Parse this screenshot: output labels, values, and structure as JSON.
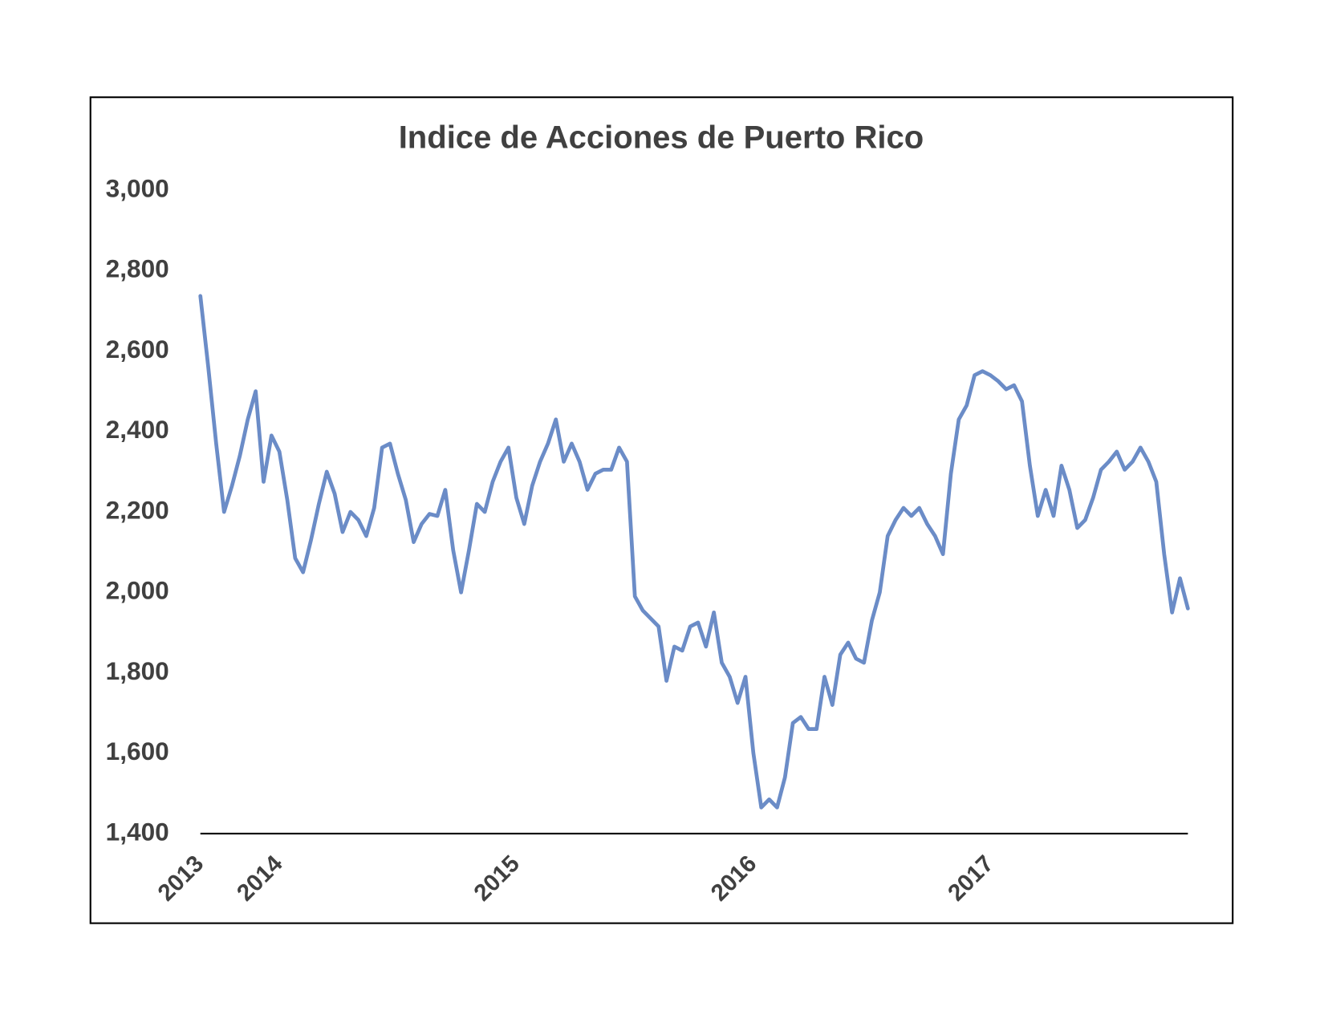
{
  "chart_data": {
    "type": "line",
    "title": "Indice de Acciones de Puerto Rico",
    "categories": [
      "2013",
      null,
      null,
      null,
      null,
      null,
      null,
      null,
      null,
      null,
      "2014",
      null,
      null,
      null,
      null,
      null,
      null,
      null,
      null,
      null,
      null,
      null,
      null,
      null,
      null,
      null,
      null,
      null,
      null,
      null,
      null,
      null,
      null,
      null,
      null,
      null,
      null,
      null,
      null,
      null,
      "2015",
      null,
      null,
      null,
      null,
      null,
      null,
      null,
      null,
      null,
      null,
      null,
      null,
      null,
      null,
      null,
      null,
      null,
      null,
      null,
      null,
      null,
      null,
      null,
      null,
      null,
      null,
      null,
      null,
      null,
      "2016",
      null,
      null,
      null,
      null,
      null,
      null,
      null,
      null,
      null,
      null,
      null,
      null,
      null,
      null,
      null,
      null,
      null,
      null,
      null,
      null,
      null,
      null,
      null,
      null,
      null,
      null,
      null,
      null,
      null,
      "2017",
      null,
      null,
      null,
      null,
      null,
      null,
      null,
      null,
      null,
      null,
      null,
      null,
      null,
      null,
      null,
      null,
      null,
      null,
      null,
      null,
      null,
      null,
      null,
      null,
      null
    ],
    "values": [
      2737,
      2560,
      2370,
      2200,
      2265,
      2340,
      2430,
      2500,
      2275,
      2390,
      2350,
      2230,
      2085,
      2050,
      2130,
      2220,
      2300,
      2245,
      2150,
      2200,
      2180,
      2140,
      2210,
      2360,
      2370,
      2295,
      2230,
      2125,
      2170,
      2195,
      2190,
      2255,
      2105,
      2000,
      2105,
      2220,
      2200,
      2275,
      2325,
      2360,
      2235,
      2170,
      2265,
      2325,
      2370,
      2430,
      2325,
      2370,
      2325,
      2255,
      2295,
      2305,
      2305,
      2360,
      2325,
      1990,
      1955,
      1935,
      1915,
      1780,
      1865,
      1855,
      1915,
      1925,
      1865,
      1950,
      1825,
      1790,
      1725,
      1790,
      1600,
      1465,
      1485,
      1465,
      1540,
      1675,
      1690,
      1660,
      1660,
      1790,
      1720,
      1845,
      1875,
      1835,
      1825,
      1930,
      2000,
      2140,
      2180,
      2210,
      2190,
      2210,
      2170,
      2140,
      2095,
      2295,
      2430,
      2465,
      2540,
      2550,
      2540,
      2525,
      2505,
      2515,
      2475,
      2315,
      2190,
      2255,
      2190,
      2315,
      2255,
      2160,
      2180,
      2235,
      2305,
      2325,
      2350,
      2305,
      2325,
      2360,
      2325,
      2275,
      2095,
      1950,
      2035,
      1960
    ],
    "color": "#6b8cc7",
    "ylim": [
      1400,
      3000
    ],
    "yticks": [
      {
        "value": 1400,
        "label": "1,400"
      },
      {
        "value": 1600,
        "label": "1,600"
      },
      {
        "value": 1800,
        "label": "1,800"
      },
      {
        "value": 2000,
        "label": "2,000"
      },
      {
        "value": 2200,
        "label": "2,200"
      },
      {
        "value": 2400,
        "label": "2,400"
      },
      {
        "value": 2600,
        "label": "2,600"
      },
      {
        "value": 2800,
        "label": "2,800"
      },
      {
        "value": 3000,
        "label": "3,000"
      }
    ],
    "grid": false
  }
}
